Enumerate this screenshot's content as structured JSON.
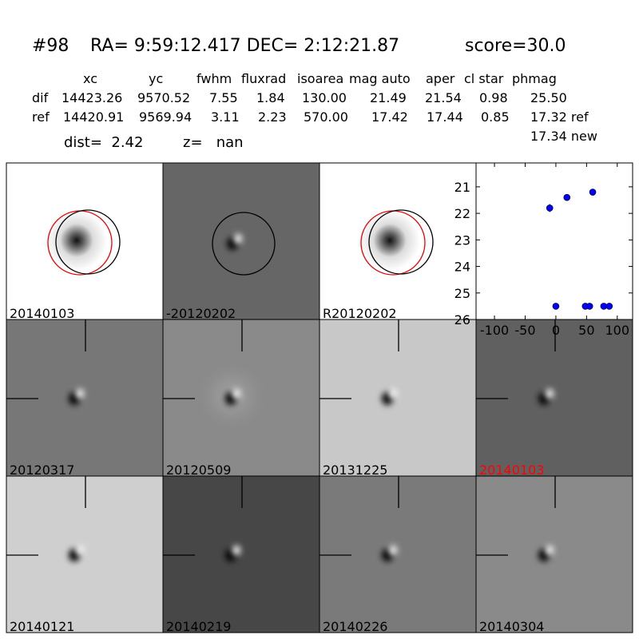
{
  "header": {
    "id": "#98",
    "coords": "RA= 9:59:12.417 DEC= 2:12:21.87",
    "score": "score=30.0"
  },
  "table": {
    "columns": [
      "xc",
      "yc",
      "fwhm",
      "fluxrad",
      "isoarea",
      "mag auto",
      "aper",
      "cl star",
      "phmag"
    ],
    "rows": [
      [
        "dif",
        "14423.26",
        "9570.52",
        "7.55",
        "1.84",
        "130.00",
        "21.49",
        "21.54",
        "0.98",
        "25.50"
      ],
      [
        "ref",
        "14420.91",
        "9569.94",
        "3.11",
        "2.23",
        "570.00",
        "17.42",
        "17.44",
        "0.85",
        "17.32 ref"
      ]
    ],
    "extra": "17.34 new"
  },
  "dist": "dist=  2.42",
  "z": "z=   nan",
  "panels": [
    {
      "label": "20140103"
    },
    {
      "label": "-20120202"
    },
    {
      "label": "R20120202"
    },
    {
      "label": "20120317"
    },
    {
      "label": "20120509"
    },
    {
      "label": "20131225"
    },
    {
      "label": "20140103"
    },
    {
      "label": "20140121"
    },
    {
      "label": "20140219"
    },
    {
      "label": "20140226"
    },
    {
      "label": "20140304"
    }
  ],
  "chart_data": {
    "type": "scatter",
    "x": [
      -10,
      18,
      60,
      0,
      48,
      55,
      78,
      87
    ],
    "series": [
      {
        "color": "#0000ff",
        "values": [
          21.8,
          21.4,
          21.2,
          25.5,
          25.5,
          25.5,
          25.5,
          25.5
        ],
        "errors": [
          0.15,
          0.08,
          0.05,
          0.05,
          0.05,
          0.05,
          0.05,
          0.05
        ]
      }
    ],
    "xlim": [
      -130,
      125
    ],
    "ylim": [
      26,
      20.1
    ],
    "xticks": [
      -100,
      -50,
      0,
      50,
      100
    ],
    "yticks": [
      21,
      22,
      23,
      24,
      25,
      26
    ]
  }
}
